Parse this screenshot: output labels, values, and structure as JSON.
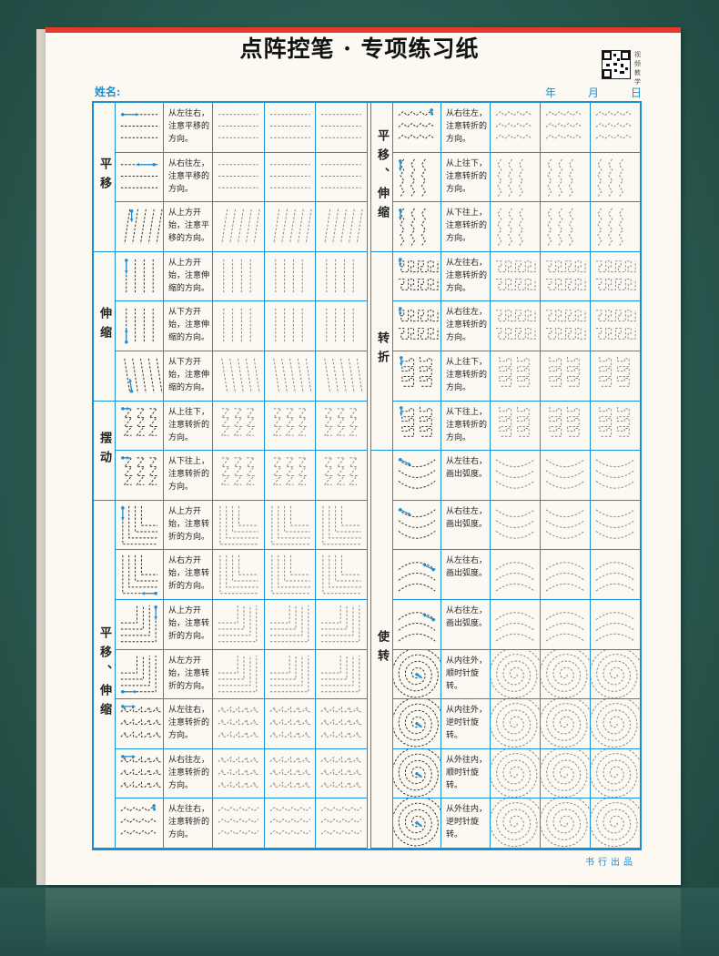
{
  "sheet": {
    "title": "点阵控笔 · 专项练习纸",
    "name_label": "姓名:",
    "date_year": "年",
    "date_month": "月",
    "date_day": "日",
    "qr_caption": "视频教学",
    "footer": "书行出品"
  },
  "colors": {
    "accent": "#1b8fd6",
    "header_bar": "#e5392a",
    "background": "#2e5e55"
  },
  "left_groups": [
    {
      "label": "平移",
      "rows": 3
    },
    {
      "label": "伸缩",
      "rows": 3
    },
    {
      "label": "摆动",
      "rows": 2
    },
    {
      "label": "平移、伸缩",
      "rows": 7
    }
  ],
  "left_rows": [
    {
      "pattern": "hlines",
      "instruction": "从左往右，注意平移的方向。"
    },
    {
      "pattern": "hlines-rev",
      "instruction": "从右往左，注意平移的方向。"
    },
    {
      "pattern": "slant",
      "instruction": "从上方开始，注意平移的方向。"
    },
    {
      "pattern": "vlines",
      "instruction": "从上方开始，注意伸缩的方向。"
    },
    {
      "pattern": "vlines-up",
      "instruction": "从下方开始，注意伸缩的方向。"
    },
    {
      "pattern": "backslant",
      "instruction": "从下方开始，注意伸缩的方向。"
    },
    {
      "pattern": "zz",
      "instruction": "从上往下，注意转折的方向。"
    },
    {
      "pattern": "zz-up",
      "instruction": "从下往上，注意转折的方向。"
    },
    {
      "pattern": "corner-tl",
      "instruction": "从上方开始，注意转折的方向。"
    },
    {
      "pattern": "corner-tl-r",
      "instruction": "从右方开始，注意转折的方向。"
    },
    {
      "pattern": "corner-br",
      "instruction": "从上方开始，注意转折的方向。"
    },
    {
      "pattern": "corner-br-l",
      "instruction": "从左方开始，注意转折的方向。"
    },
    {
      "pattern": "saw",
      "instruction": "从左往右，注意转折的方向。"
    },
    {
      "pattern": "saw",
      "instruction": "从右往左，注意转折的方向。"
    },
    {
      "pattern": "zigzag-h",
      "instruction": "从左往右，注意转折的方向。"
    }
  ],
  "right_groups": [
    {
      "label": "平移、伸缩",
      "rows": 3
    },
    {
      "label": "转折",
      "rows": 4
    },
    {
      "label": "使转",
      "rows": 8
    }
  ],
  "right_rows": [
    {
      "pattern": "zigzag-h",
      "instruction": "从右往左，注意转折的方向。"
    },
    {
      "pattern": "zigzag-v",
      "instruction": "从上往下，注意转折的方向。"
    },
    {
      "pattern": "zigzag-v",
      "instruction": "从下往上，注意转折的方向。"
    },
    {
      "pattern": "meander",
      "instruction": "从左往右，注意转折的方向。"
    },
    {
      "pattern": "meander",
      "instruction": "从右往左，注意转折的方向。"
    },
    {
      "pattern": "meander-v",
      "instruction": "从上往下，注意转折的方向。"
    },
    {
      "pattern": "meander-v",
      "instruction": "从下往上，注意转折的方向。"
    },
    {
      "pattern": "arc-down",
      "instruction": "从左往右，画出弧度。"
    },
    {
      "pattern": "arc-down",
      "instruction": "从右往左，画出弧度。"
    },
    {
      "pattern": "arc-up",
      "instruction": "从左往右，画出弧度。"
    },
    {
      "pattern": "arc-up",
      "instruction": "从右往左，画出弧度。"
    },
    {
      "pattern": "spiral",
      "instruction": "从内往外，顺时针旋转。"
    },
    {
      "pattern": "spiral",
      "instruction": "从内往外，逆时针旋转。"
    },
    {
      "pattern": "spiral",
      "instruction": "从外往内，顺时针旋转。"
    },
    {
      "pattern": "spiral",
      "instruction": "从外往内，逆时针旋转。"
    }
  ]
}
